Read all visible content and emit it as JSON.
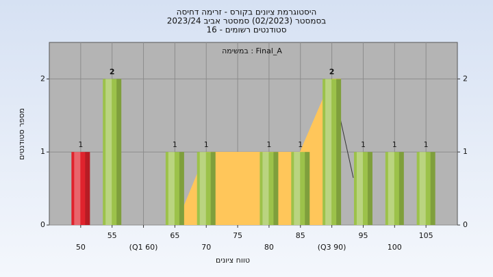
{
  "chart_data": {
    "type": "bar",
    "title": "היסטוגרמת ציונים בקורס - זרימה דחיסה",
    "subtitle": "בסמסטר  (02/2023)  סמסטר אביב  2023/24",
    "subtitle2": "סטודנטים רשומים - 16",
    "annotation": "במשימה : Final_A",
    "x_label": "טווח ציונים",
    "y_label": "מספר סטודנטים",
    "categories": [
      "50",
      "55",
      "(Q1 60)",
      "65",
      "70",
      "75",
      "80",
      "85",
      "(Q3 90)",
      "95",
      "100",
      "105"
    ],
    "values": [
      1,
      2,
      0,
      1,
      1,
      0,
      1,
      1,
      2,
      1,
      1,
      1
    ],
    "colors": [
      "#e0232d",
      "#9cc24a",
      "#9cc24a",
      "#9cc24a",
      "#9cc24a",
      "#9cc24a",
      "#9cc24a",
      "#9cc24a",
      "#9cc24a",
      "#9cc24a",
      "#9cc24a",
      "#9cc24a"
    ],
    "ylim": [
      0,
      2.5
    ],
    "yticks": [
      0,
      1,
      2
    ],
    "grid": true
  }
}
